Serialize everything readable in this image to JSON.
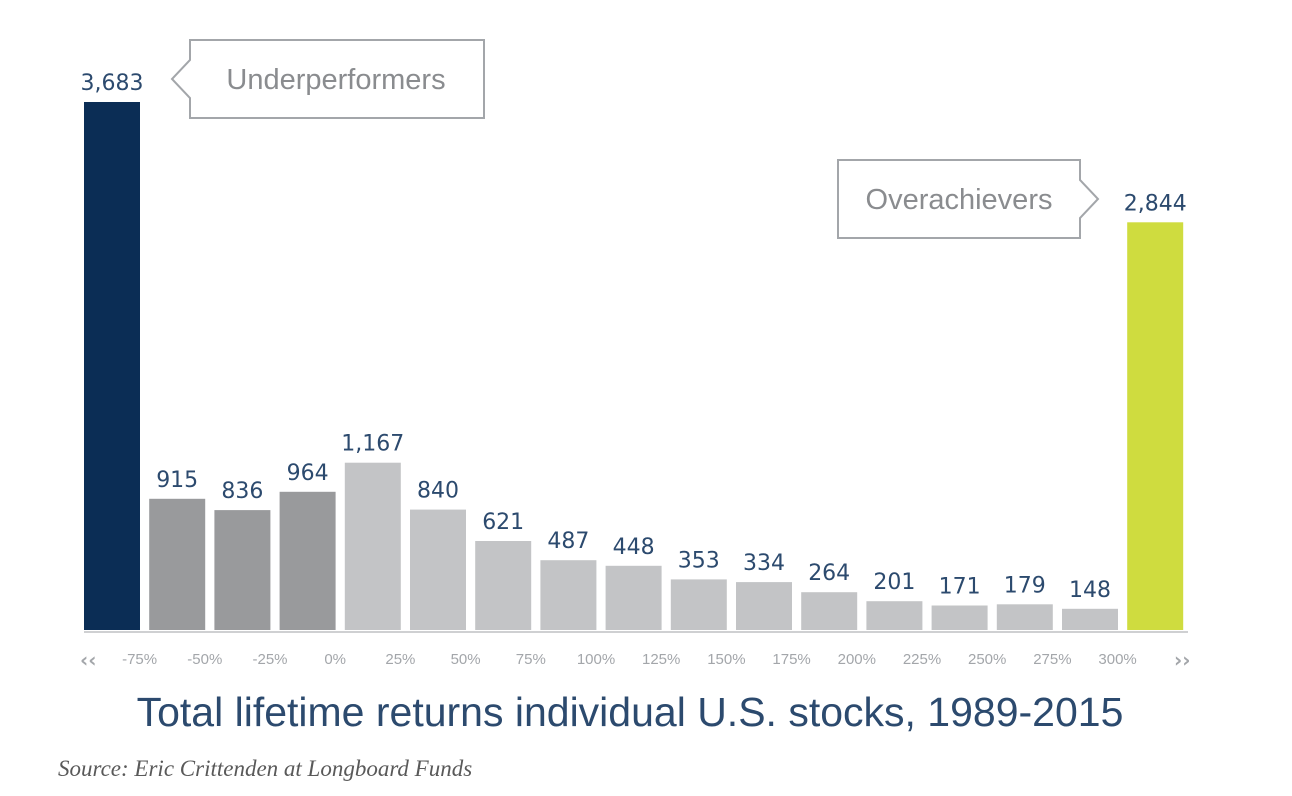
{
  "chart_data": {
    "type": "bar",
    "title": "Total lifetime returns individual U.S. stocks, 1989-2015",
    "source": "Source: Eric Crittenden at Longboard Funds",
    "values": [
      3683,
      915,
      836,
      964,
      1167,
      840,
      621,
      487,
      448,
      353,
      334,
      264,
      201,
      171,
      179,
      148,
      2844
    ],
    "value_labels": [
      "3,683",
      "915",
      "836",
      "964",
      "1,167",
      "840",
      "621",
      "487",
      "448",
      "353",
      "334",
      "264",
      "201",
      "171",
      "179",
      "148",
      "2,844"
    ],
    "tick_labels": [
      "-75%",
      "-50%",
      "-25%",
      "0%",
      "25%",
      "50%",
      "75%",
      "100%",
      "125%",
      "150%",
      "175%",
      "200%",
      "225%",
      "250%",
      "275%",
      "300%"
    ],
    "left_arrow": "‹‹",
    "right_arrow": "››",
    "ylim": [
      0,
      3683
    ],
    "grid": false,
    "bar_colors": [
      "#0b2d55",
      "#999a9c",
      "#999a9c",
      "#999a9c",
      "#c3c4c6",
      "#c3c4c6",
      "#c3c4c6",
      "#c3c4c6",
      "#c3c4c6",
      "#c3c4c6",
      "#c3c4c6",
      "#c3c4c6",
      "#c3c4c6",
      "#c3c4c6",
      "#c3c4c6",
      "#c3c4c6",
      "#cfdc3f"
    ],
    "annotations": [
      {
        "text": "Underperformers",
        "points_to": "first bar"
      },
      {
        "text": "Overachievers",
        "points_to": "last bar"
      }
    ]
  },
  "colors": {
    "label_text": "#2c4a6e",
    "tick_text": "#a3a6aa",
    "axis_line": "#cfd0d2",
    "callout_border": "#a3a6aa"
  }
}
